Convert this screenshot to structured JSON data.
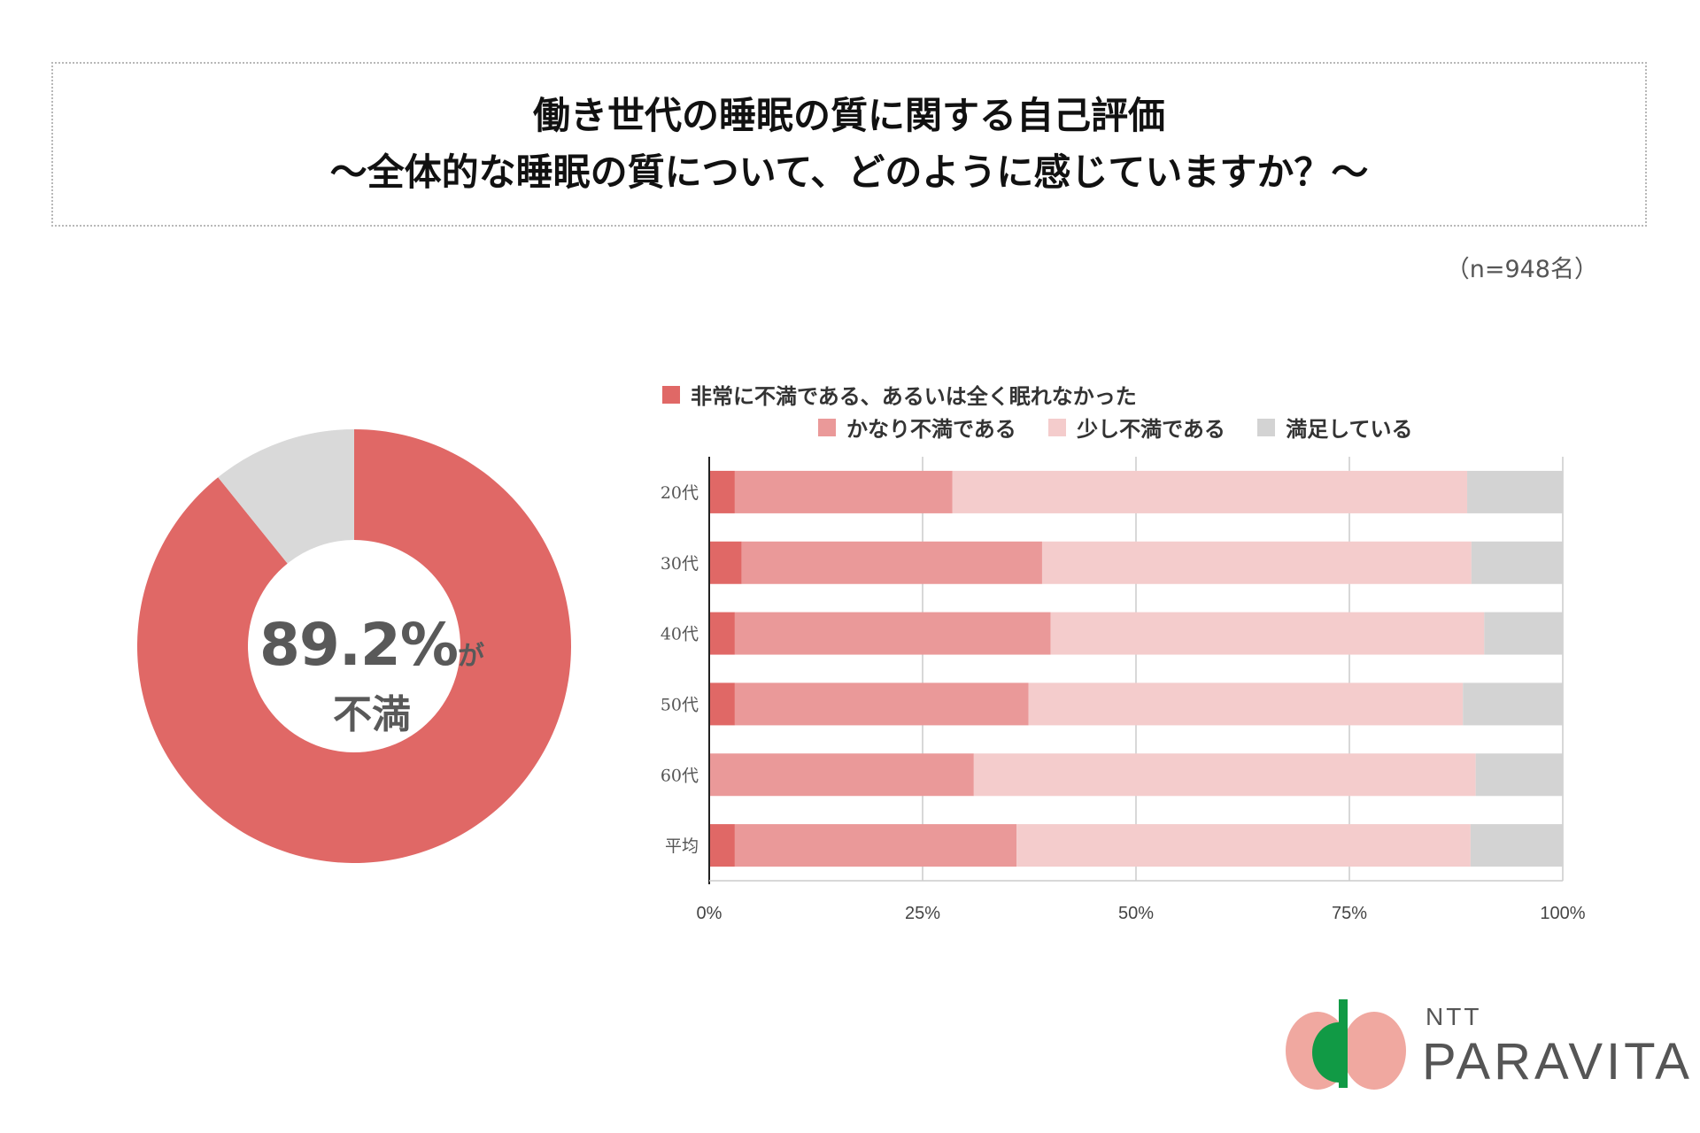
{
  "header": {
    "title_line1": "働き世代の睡眠の質に関する自己評価",
    "title_line2": "〜全体的な睡眠の質について、どのように感じていますか？〜",
    "sample_size": "（n=948名）"
  },
  "donut": {
    "percent_text": "89.2%",
    "ga_text": "が",
    "label_text": "不満",
    "dissatisfied_percent": 89.2,
    "satisfied_percent": 10.8,
    "dissatisfied_color": "#e06866",
    "satisfied_color": "#d9d9d9"
  },
  "chart_data": {
    "type": "bar",
    "orientation": "horizontal",
    "stacked": true,
    "categories": [
      "20代",
      "30代",
      "40代",
      "50代",
      "60代",
      "平均"
    ],
    "series": [
      {
        "name": "非常に不満である、あるいは全く眠れなかった",
        "color": "#e06866",
        "values": [
          3.0,
          3.8,
          3.0,
          3.0,
          0.0,
          3.0
        ]
      },
      {
        "name": "かなり不満である",
        "color": "#ea9999",
        "values": [
          25.5,
          35.2,
          37.0,
          34.4,
          31.0,
          33.0
        ]
      },
      {
        "name": "少し不満である",
        "color": "#f4cccc",
        "values": [
          60.3,
          50.3,
          50.8,
          50.9,
          58.8,
          53.2
        ]
      },
      {
        "name": "満足している",
        "color": "#d3d3d3",
        "values": [
          11.2,
          10.7,
          9.2,
          11.7,
          10.2,
          10.8
        ]
      }
    ],
    "xlim": [
      0,
      100
    ],
    "x_ticks": [
      "0%",
      "25%",
      "50%",
      "75%",
      "100%"
    ],
    "grid": true,
    "legend_position": "top"
  },
  "logo": {
    "top_text": "NTT",
    "name_text": "PARAVITA",
    "colors": {
      "salmon": "#f0a8a0",
      "green": "#119a45"
    }
  }
}
